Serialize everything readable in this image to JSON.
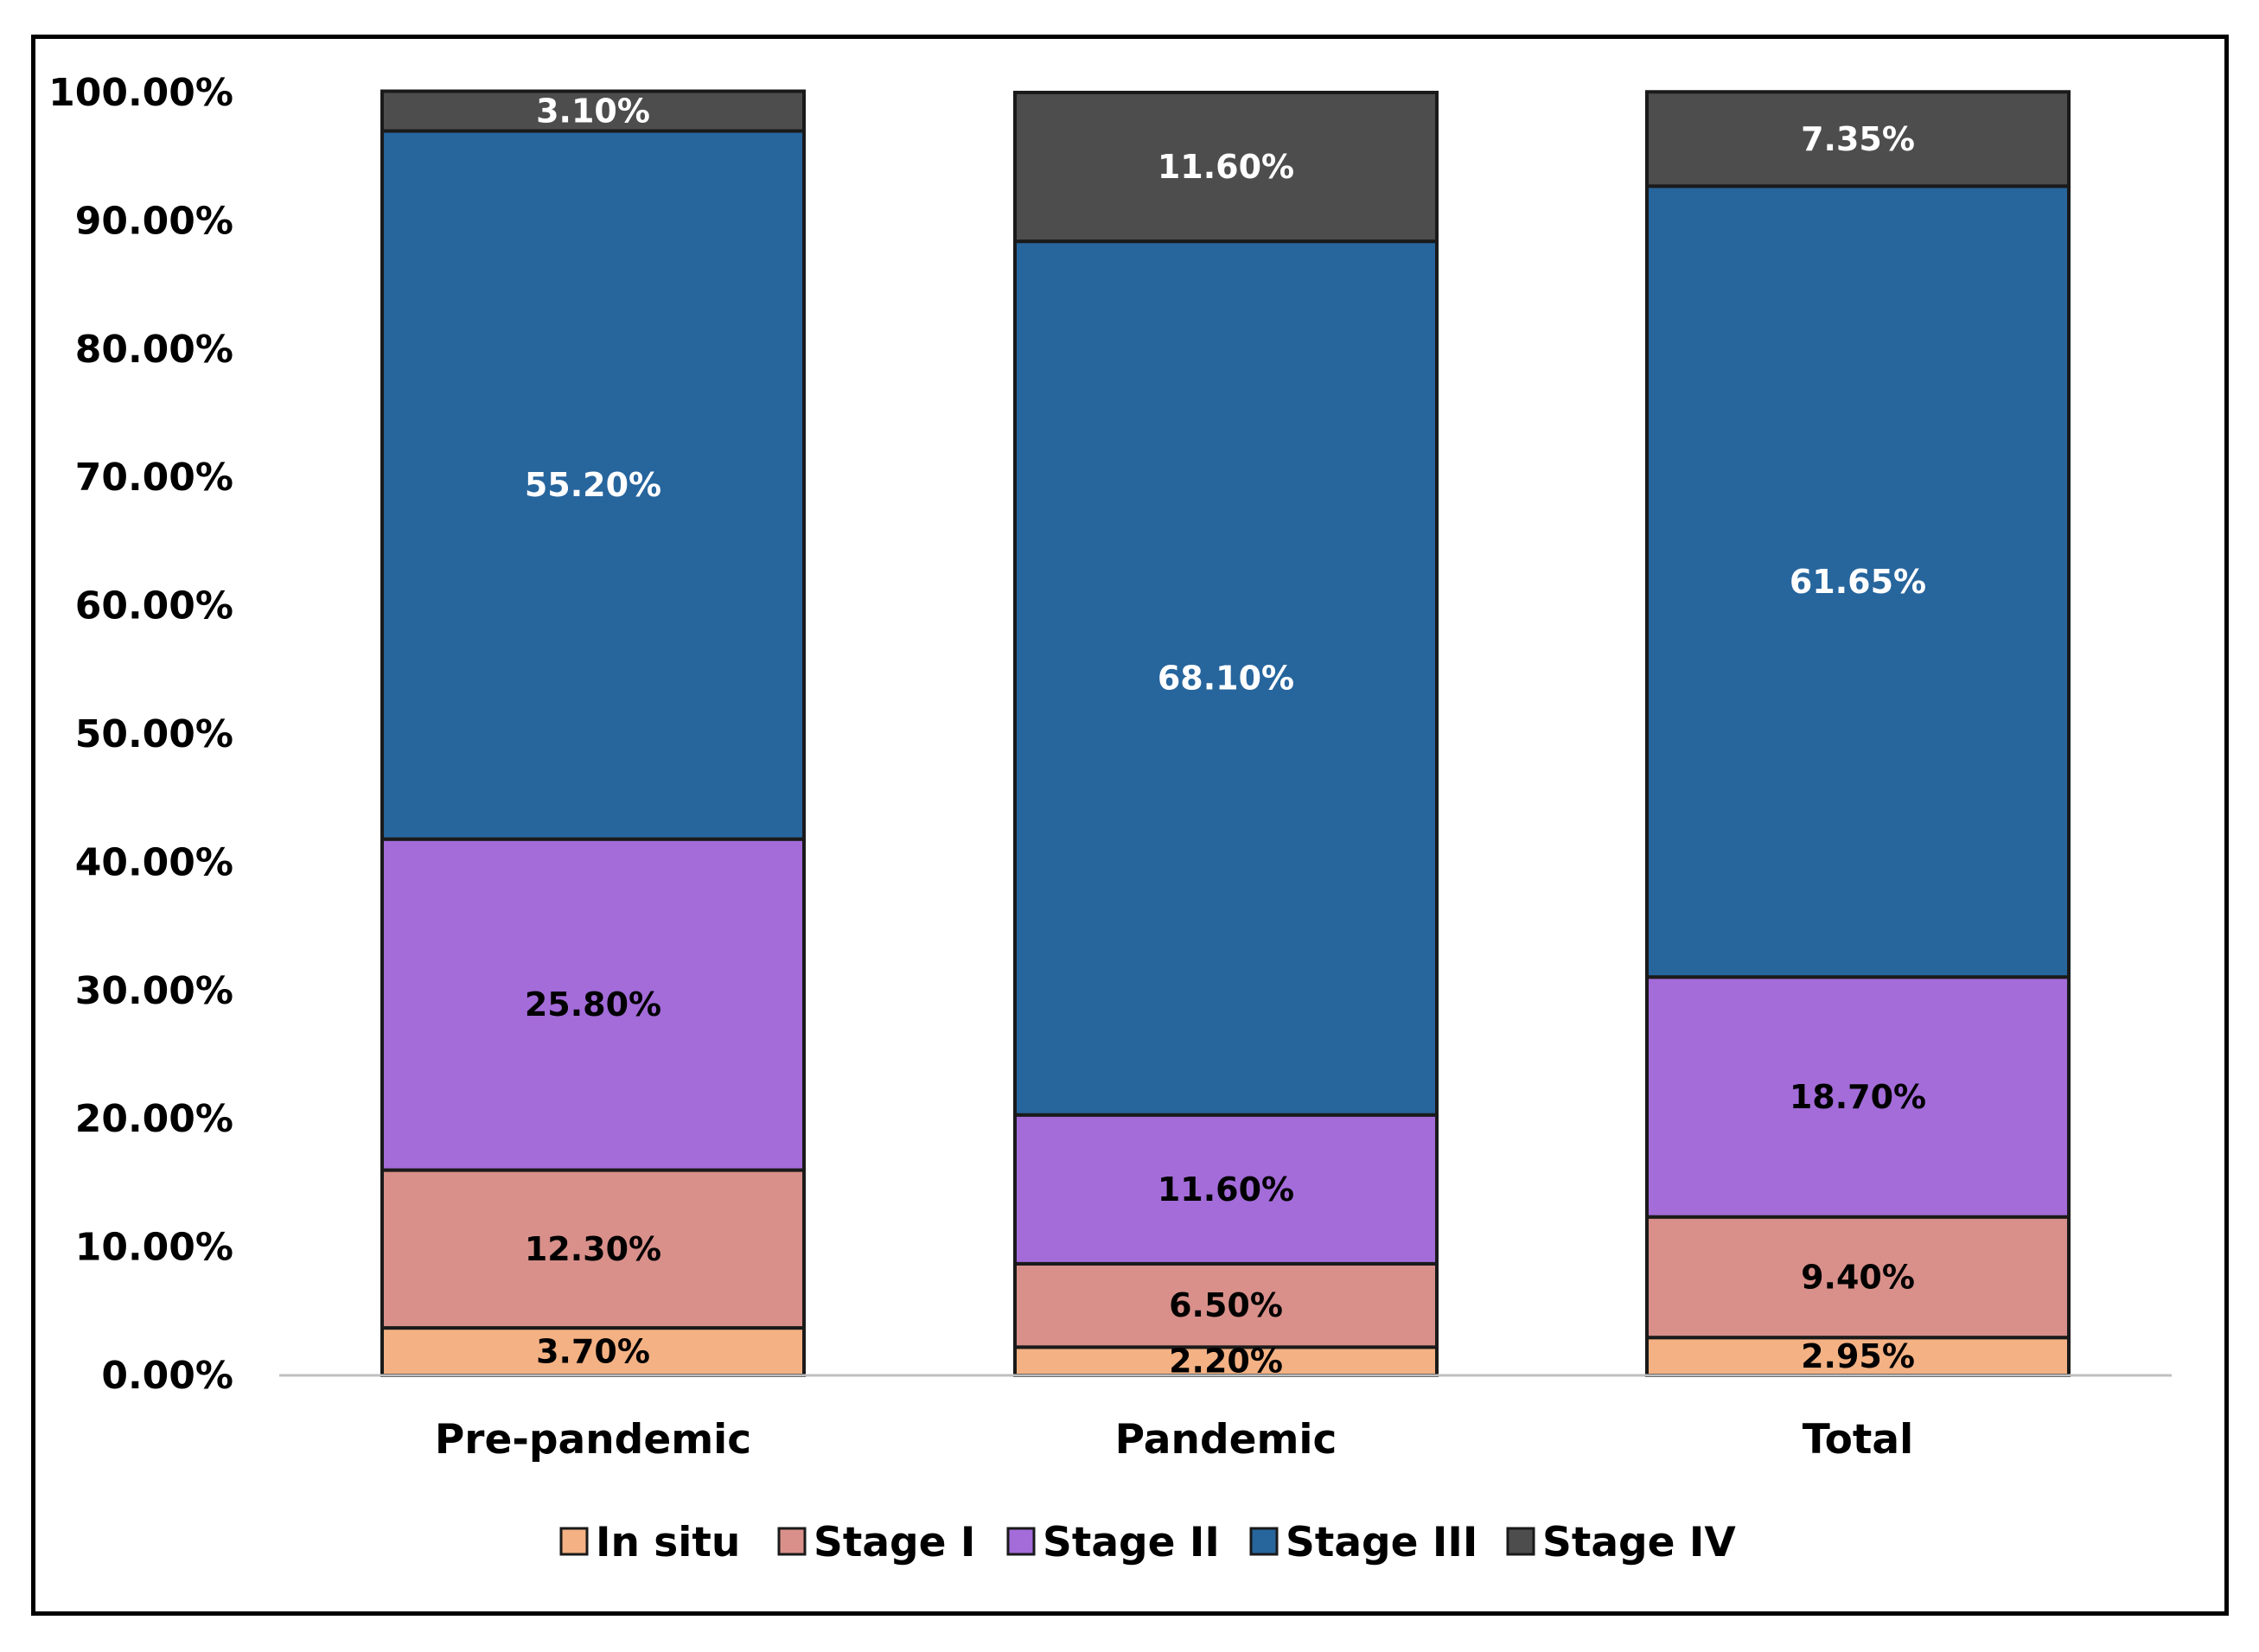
{
  "chart_data": {
    "type": "bar",
    "stacked": true,
    "categories": [
      "Pre-pandemic",
      "Pandemic",
      "Total"
    ],
    "series": [
      {
        "name": "In situ",
        "color": "#F4B183",
        "label_color": "#000000",
        "values": [
          3.7,
          2.2,
          2.95
        ],
        "labels": [
          "3.70%",
          "2.20%",
          "2.95%"
        ]
      },
      {
        "name": "Stage I",
        "color": "#D9908A",
        "label_color": "#000000",
        "values": [
          12.3,
          6.5,
          9.4
        ],
        "labels": [
          "12.30%",
          "6.50%",
          "9.40%"
        ]
      },
      {
        "name": "Stage II",
        "color": "#A36CD9",
        "label_color": "#000000",
        "values": [
          25.8,
          11.6,
          18.7
        ],
        "labels": [
          "25.80%",
          "11.60%",
          "18.70%"
        ]
      },
      {
        "name": "Stage III",
        "color": "#27659D",
        "label_color": "#ffffff",
        "values": [
          55.2,
          68.1,
          61.65
        ],
        "labels": [
          "55.20%",
          "68.10%",
          "61.65%"
        ]
      },
      {
        "name": "Stage IV",
        "color": "#4D4D4D",
        "label_color": "#ffffff",
        "values": [
          3.1,
          11.6,
          7.35
        ],
        "labels": [
          "3.10%",
          "11.60%",
          "7.35%"
        ]
      }
    ],
    "ylim": [
      0,
      100
    ],
    "yticks": [
      "0.00%",
      "10.00%",
      "20.00%",
      "30.00%",
      "40.00%",
      "50.00%",
      "60.00%",
      "70.00%",
      "80.00%",
      "90.00%",
      "100.00%"
    ],
    "title": "",
    "xlabel": "",
    "ylabel": "",
    "grid": false,
    "legend_position": "bottom"
  }
}
